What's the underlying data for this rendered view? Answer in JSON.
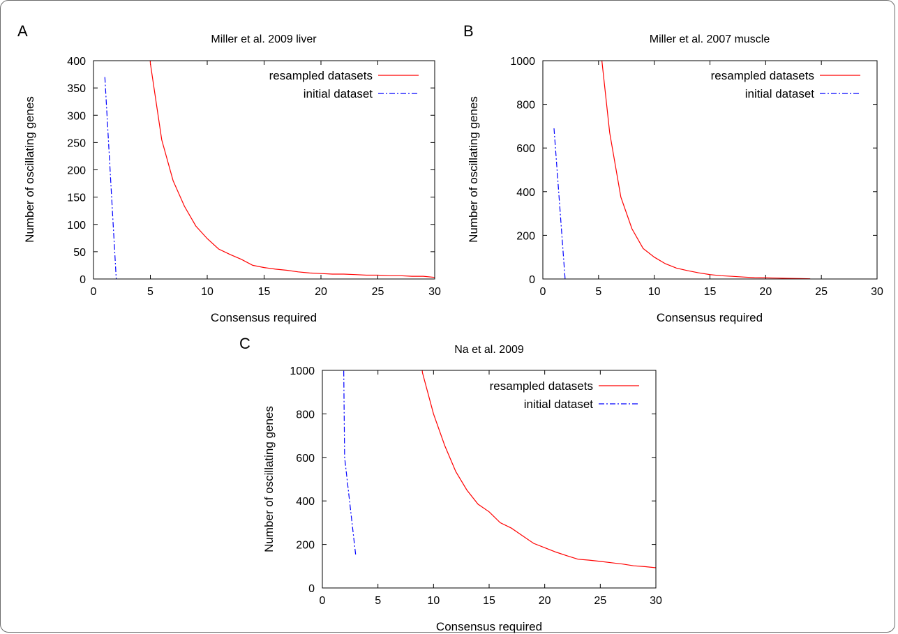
{
  "chart_data": [
    {
      "type": "line",
      "panel": "A",
      "title": "Miller et al. 2009 liver",
      "xlabel": "Consensus required",
      "ylabel": "Number of oscillating genes",
      "xlim": [
        0,
        30
      ],
      "ylim": [
        0,
        400
      ],
      "xticks": [
        0,
        5,
        10,
        15,
        20,
        25,
        30
      ],
      "yticks": [
        0,
        50,
        100,
        150,
        200,
        250,
        300,
        350,
        400
      ],
      "grid": false,
      "legend_position": "top-right",
      "series": [
        {
          "name": "resampled datasets",
          "color": "#ff0000",
          "style": "solid",
          "x": [
            4.5,
            5,
            6,
            7,
            8,
            9,
            10,
            11,
            12,
            13,
            14,
            15,
            16,
            17,
            18,
            19,
            20,
            21,
            22,
            23,
            24,
            25,
            26,
            27,
            28,
            29,
            30
          ],
          "y": [
            600,
            395,
            255,
            180,
            133,
            97,
            74,
            55,
            45,
            36,
            25,
            21,
            18,
            16,
            13,
            11,
            10,
            9,
            9,
            8,
            7,
            7,
            6,
            6,
            5,
            5,
            3
          ]
        },
        {
          "name": "initial dataset",
          "color": "#0000ff",
          "style": "dash-dot",
          "x": [
            1,
            2
          ],
          "y": [
            370,
            0
          ]
        }
      ]
    },
    {
      "type": "line",
      "panel": "B",
      "title": "Miller et al. 2007 muscle",
      "xlabel": "Consensus required",
      "ylabel": "Number of oscillating genes",
      "xlim": [
        0,
        30
      ],
      "ylim": [
        0,
        1000
      ],
      "xticks": [
        0,
        5,
        10,
        15,
        20,
        25,
        30
      ],
      "yticks": [
        0,
        200,
        400,
        600,
        800,
        1000
      ],
      "grid": false,
      "legend_position": "top-right",
      "series": [
        {
          "name": "resampled datasets",
          "color": "#ff0000",
          "style": "solid",
          "x": [
            5.3,
            6,
            7,
            8,
            9,
            10,
            11,
            12,
            13,
            14,
            15,
            16,
            17,
            18,
            19,
            20,
            21,
            22,
            23,
            24
          ],
          "y": [
            1000,
            670,
            375,
            230,
            140,
            100,
            70,
            50,
            38,
            28,
            20,
            15,
            12,
            9,
            6,
            5,
            4,
            3,
            2,
            1
          ]
        },
        {
          "name": "initial dataset",
          "color": "#0000ff",
          "style": "dash-dot",
          "x": [
            1,
            2
          ],
          "y": [
            690,
            0
          ]
        }
      ]
    },
    {
      "type": "line",
      "panel": "C",
      "title": "Na et al. 2009",
      "xlabel": "Consensus required",
      "ylabel": "Number of oscillating genes",
      "xlim": [
        0,
        30
      ],
      "ylim": [
        0,
        1000
      ],
      "xticks": [
        0,
        5,
        10,
        15,
        20,
        25,
        30
      ],
      "yticks": [
        0,
        200,
        400,
        600,
        800,
        1000
      ],
      "grid": false,
      "legend_position": "top-right",
      "series": [
        {
          "name": "resampled datasets",
          "color": "#ff0000",
          "style": "solid",
          "x": [
            8.8,
            9,
            10,
            11,
            12,
            13,
            14,
            15,
            16,
            17,
            18,
            19,
            20,
            21,
            22,
            23,
            24,
            25,
            26,
            27,
            28,
            29,
            30
          ],
          "y": [
            1100,
            990,
            800,
            655,
            535,
            450,
            385,
            350,
            300,
            275,
            240,
            205,
            185,
            165,
            148,
            132,
            128,
            122,
            116,
            110,
            102,
            98,
            93
          ]
        },
        {
          "name": "initial dataset",
          "color": "#0000ff",
          "style": "dash-dot",
          "x": [
            1.9,
            2,
            3
          ],
          "y": [
            1100,
            600,
            150
          ]
        }
      ]
    }
  ]
}
